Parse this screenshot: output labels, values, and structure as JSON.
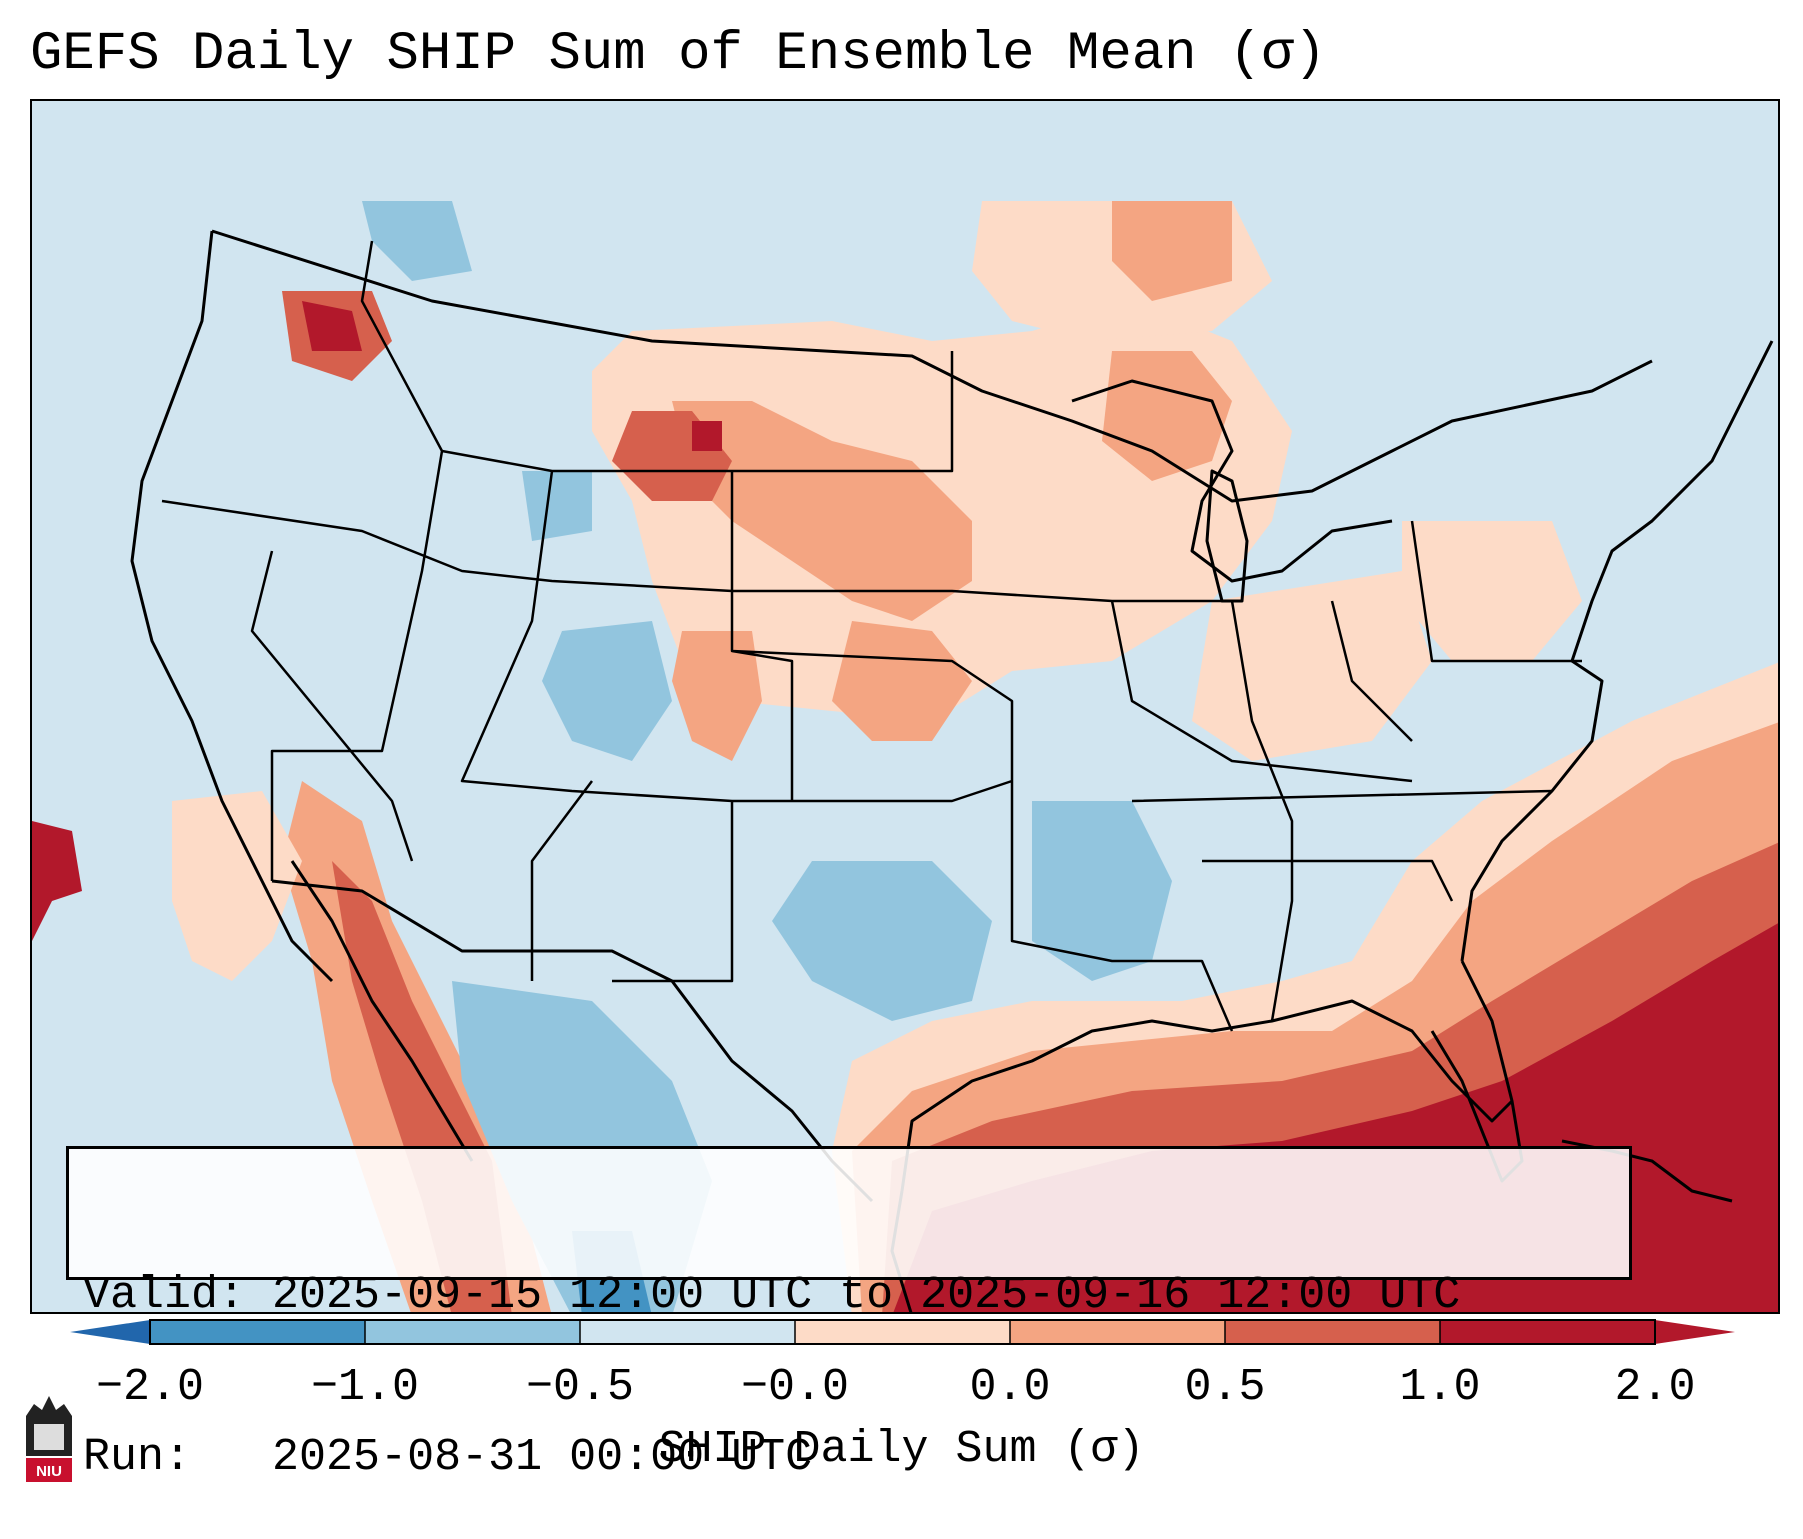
{
  "title": "GEFS Daily SHIP Sum of Ensemble Mean (σ)",
  "valid_label": "Valid:",
  "valid_value": "2025-09-15 12:00 UTC to 2025-09-16 12:00 UTC",
  "run_label": "Run:",
  "run_value": "2025-08-31 00:00 UTC",
  "colorbar": {
    "label": "SHIP Daily Sum (σ)",
    "ticks": [
      "−2.0",
      "−1.0",
      "−0.5",
      "−0.0",
      "0.0",
      "0.5",
      "1.0",
      "2.0"
    ],
    "colors": [
      "#4393c3",
      "#92c5de",
      "#d1e5f0",
      "#fddbc7",
      "#f4a582",
      "#d6604d",
      "#b2182b"
    ],
    "extend_low_color": "#2166ac",
    "extend_high_color": "#b2182b"
  },
  "logo": {
    "text": "NIU",
    "color": "#c8102e"
  },
  "legend_values": {
    "strong_negative": "#4393c3",
    "weak_negative": "#92c5de",
    "near_zero_negative": "#d1e5f0",
    "near_zero_positive": "#fddbc7",
    "weak_positive": "#f4a582",
    "moderate_positive": "#d6604d",
    "strong_positive": "#b2182b"
  }
}
